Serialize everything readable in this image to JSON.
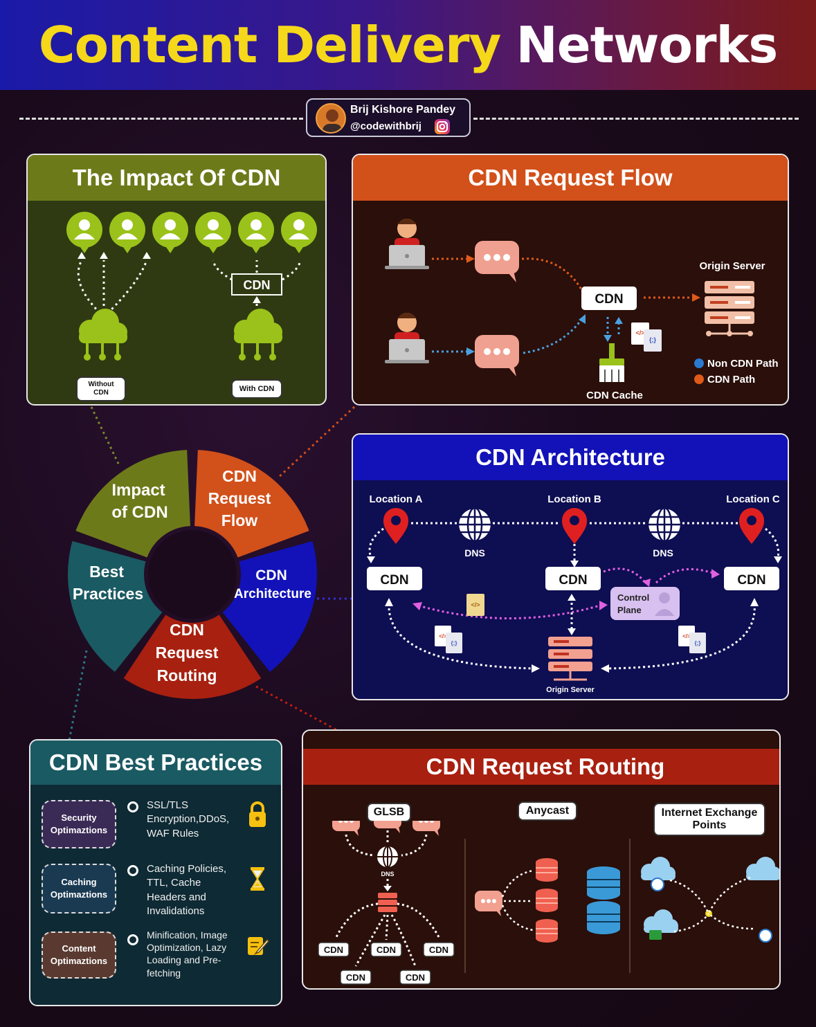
{
  "title": {
    "part1": "Content Delivery",
    "part2": "Networks"
  },
  "author": {
    "name": "Brij Kishore Pandey",
    "handle": "@codewithbrij"
  },
  "impact": {
    "heading": "The Impact Of CDN",
    "without_label": "Without CDN",
    "with_label": "With CDN",
    "cdn_box": "CDN"
  },
  "flow": {
    "heading": "CDN Request Flow",
    "origin_label": "Origin Server",
    "cdn_label": "CDN",
    "cache_label": "CDN Cache",
    "legend_non_cdn": "Non CDN Path",
    "legend_cdn": "CDN Path"
  },
  "wheel": {
    "impact": "Impact of CDN",
    "flow": "CDN Request Flow",
    "arch": "CDN Architecture",
    "routing": "CDN Request Routing",
    "best": "Best Practices"
  },
  "arch": {
    "heading": "CDN Architecture",
    "loc_a": "Location A",
    "loc_b": "Location B",
    "loc_c": "Location C",
    "dns": "DNS",
    "cdn": "CDN",
    "control_plane": "Control Plane",
    "origin": "Origin Server"
  },
  "best": {
    "heading": "CDN Best Practices",
    "items": [
      {
        "name": "Security Optimaztions",
        "desc": "SSL/TLS Encryption,DDoS, WAF Rules"
      },
      {
        "name": "Caching Optimaztions",
        "desc": "Caching Policies, TTL, Cache Headers and Invalidations"
      },
      {
        "name": "Content Optimaztions",
        "desc": "Minification, Image Optimization, Lazy Loading and Pre-fetching"
      }
    ]
  },
  "routing": {
    "heading": "CDN Request Routing",
    "glsb": "GLSB",
    "anycast": "Anycast",
    "ixp": "Internet Exchange Points",
    "dns": "DNS",
    "cdn": "CDN"
  },
  "colors": {
    "green": "#6d7a1a",
    "orange": "#d2501a",
    "blue": "#1212b8",
    "teal": "#1a5a62",
    "red": "#a82010",
    "yellow": "#f5d81a"
  }
}
